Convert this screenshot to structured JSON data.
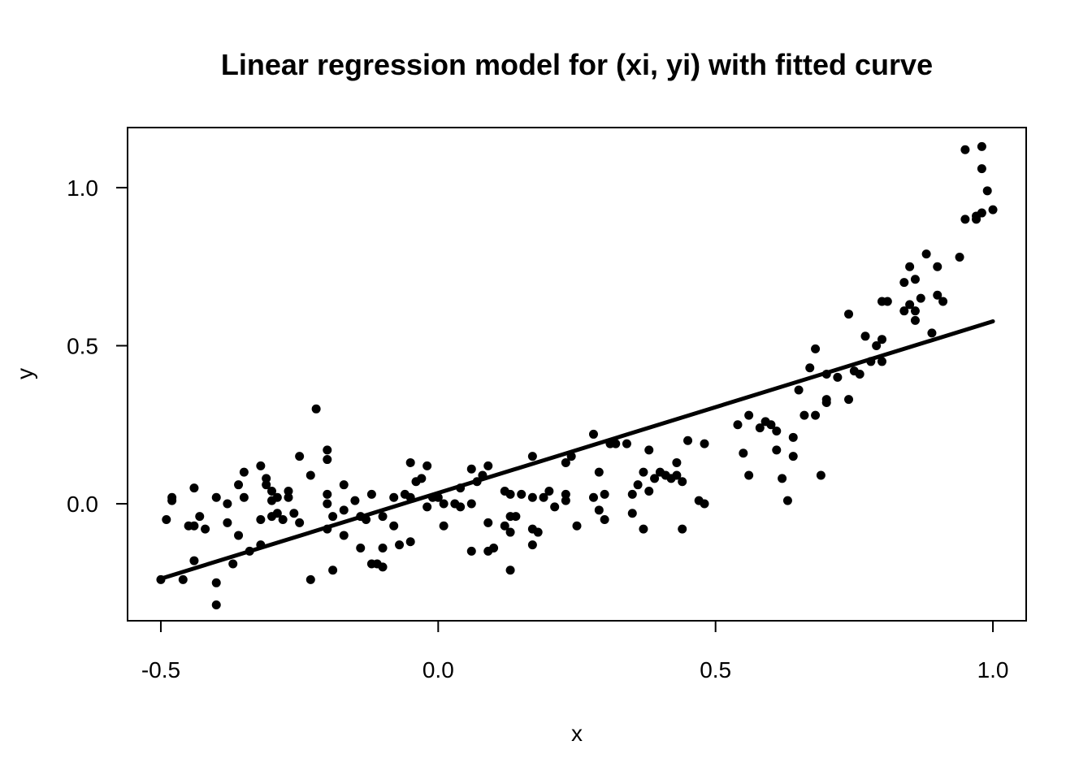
{
  "chart_data": {
    "type": "scatter",
    "title": "Linear regression model for (xi, yi) with fitted curve",
    "xlabel": "x",
    "ylabel": "y",
    "xlim": [
      -0.56,
      1.06
    ],
    "ylim": [
      -0.37,
      1.19
    ],
    "xticks": [
      -0.5,
      0.0,
      0.5,
      1.0
    ],
    "xtick_labels": [
      "-0.5",
      "0.0",
      "0.5",
      "1.0"
    ],
    "yticks": [
      0.0,
      0.5,
      1.0
    ],
    "ytick_labels": [
      "0.0",
      "0.5",
      "1.0"
    ],
    "grid": false,
    "legend": "none",
    "point_color": "#000000",
    "line_color": "#000000",
    "fitted_line": {
      "x": [
        -0.5,
        1.0
      ],
      "y": [
        -0.237,
        0.577
      ]
    },
    "points": [
      [
        -0.5,
        -0.24
      ],
      [
        -0.49,
        -0.05
      ],
      [
        -0.48,
        0.02
      ],
      [
        -0.48,
        0.01
      ],
      [
        -0.46,
        -0.24
      ],
      [
        -0.45,
        -0.07
      ],
      [
        -0.44,
        -0.07
      ],
      [
        -0.44,
        0.05
      ],
      [
        -0.44,
        -0.18
      ],
      [
        -0.43,
        -0.04
      ],
      [
        -0.42,
        -0.08
      ],
      [
        -0.4,
        -0.32
      ],
      [
        -0.4,
        -0.25
      ],
      [
        -0.4,
        0.02
      ],
      [
        -0.38,
        -0.06
      ],
      [
        -0.38,
        0.0
      ],
      [
        -0.37,
        -0.19
      ],
      [
        -0.36,
        0.06
      ],
      [
        -0.36,
        -0.1
      ],
      [
        -0.35,
        0.02
      ],
      [
        -0.35,
        0.1
      ],
      [
        -0.34,
        -0.15
      ],
      [
        -0.32,
        0.12
      ],
      [
        -0.32,
        -0.05
      ],
      [
        -0.32,
        -0.13
      ],
      [
        -0.31,
        0.08
      ],
      [
        -0.31,
        0.06
      ],
      [
        -0.3,
        0.04
      ],
      [
        -0.3,
        0.01
      ],
      [
        -0.3,
        -0.04
      ],
      [
        -0.29,
        -0.03
      ],
      [
        -0.29,
        0.02
      ],
      [
        -0.28,
        -0.05
      ],
      [
        -0.27,
        0.04
      ],
      [
        -0.27,
        0.02
      ],
      [
        -0.26,
        -0.03
      ],
      [
        -0.25,
        -0.06
      ],
      [
        -0.25,
        0.15
      ],
      [
        -0.23,
        0.09
      ],
      [
        -0.23,
        -0.24
      ],
      [
        -0.22,
        0.3
      ],
      [
        -0.2,
        0.17
      ],
      [
        -0.2,
        0.14
      ],
      [
        -0.2,
        0.0
      ],
      [
        -0.2,
        0.03
      ],
      [
        -0.2,
        -0.08
      ],
      [
        -0.19,
        -0.21
      ],
      [
        -0.19,
        -0.04
      ],
      [
        -0.17,
        -0.1
      ],
      [
        -0.17,
        0.06
      ],
      [
        -0.17,
        -0.02
      ],
      [
        -0.15,
        0.01
      ],
      [
        -0.14,
        -0.04
      ],
      [
        -0.14,
        -0.14
      ],
      [
        -0.13,
        -0.05
      ],
      [
        -0.12,
        0.03
      ],
      [
        -0.12,
        -0.19
      ],
      [
        -0.11,
        -0.19
      ],
      [
        -0.1,
        -0.14
      ],
      [
        -0.1,
        -0.2
      ],
      [
        -0.1,
        -0.04
      ],
      [
        -0.08,
        -0.07
      ],
      [
        -0.08,
        0.02
      ],
      [
        -0.07,
        -0.13
      ],
      [
        -0.06,
        0.03
      ],
      [
        -0.05,
        -0.12
      ],
      [
        -0.05,
        0.13
      ],
      [
        -0.05,
        0.02
      ],
      [
        -0.04,
        0.07
      ],
      [
        -0.03,
        0.08
      ],
      [
        -0.02,
        -0.01
      ],
      [
        -0.02,
        0.12
      ],
      [
        -0.01,
        0.02
      ],
      [
        0.0,
        0.02
      ],
      [
        0.01,
        -0.07
      ],
      [
        0.01,
        0.0
      ],
      [
        0.03,
        0.0
      ],
      [
        0.04,
        0.05
      ],
      [
        0.04,
        -0.01
      ],
      [
        0.06,
        0.0
      ],
      [
        0.06,
        0.11
      ],
      [
        0.06,
        -0.15
      ],
      [
        0.07,
        0.07
      ],
      [
        0.08,
        0.09
      ],
      [
        0.09,
        -0.15
      ],
      [
        0.09,
        0.12
      ],
      [
        0.09,
        -0.06
      ],
      [
        0.1,
        -0.14
      ],
      [
        0.12,
        0.04
      ],
      [
        0.12,
        -0.07
      ],
      [
        0.13,
        0.03
      ],
      [
        0.13,
        -0.04
      ],
      [
        0.13,
        -0.21
      ],
      [
        0.13,
        -0.09
      ],
      [
        0.14,
        -0.04
      ],
      [
        0.15,
        0.03
      ],
      [
        0.17,
        0.15
      ],
      [
        0.17,
        -0.13
      ],
      [
        0.17,
        -0.08
      ],
      [
        0.17,
        0.02
      ],
      [
        0.18,
        -0.09
      ],
      [
        0.19,
        0.02
      ],
      [
        0.2,
        0.04
      ],
      [
        0.21,
        -0.01
      ],
      [
        0.23,
        0.03
      ],
      [
        0.23,
        0.13
      ],
      [
        0.23,
        0.01
      ],
      [
        0.24,
        0.15
      ],
      [
        0.25,
        -0.07
      ],
      [
        0.28,
        0.22
      ],
      [
        0.28,
        0.02
      ],
      [
        0.29,
        0.1
      ],
      [
        0.29,
        -0.02
      ],
      [
        0.3,
        0.03
      ],
      [
        0.3,
        -0.05
      ],
      [
        0.31,
        0.19
      ],
      [
        0.32,
        0.19
      ],
      [
        0.34,
        0.19
      ],
      [
        0.35,
        0.03
      ],
      [
        0.35,
        -0.03
      ],
      [
        0.36,
        0.06
      ],
      [
        0.37,
        0.1
      ],
      [
        0.37,
        -0.08
      ],
      [
        0.38,
        0.04
      ],
      [
        0.38,
        0.17
      ],
      [
        0.39,
        0.08
      ],
      [
        0.4,
        0.1
      ],
      [
        0.41,
        0.09
      ],
      [
        0.42,
        0.08
      ],
      [
        0.43,
        0.13
      ],
      [
        0.43,
        0.09
      ],
      [
        0.44,
        0.07
      ],
      [
        0.44,
        -0.08
      ],
      [
        0.45,
        0.2
      ],
      [
        0.47,
        0.01
      ],
      [
        0.48,
        0.0
      ],
      [
        0.48,
        0.19
      ],
      [
        0.54,
        0.25
      ],
      [
        0.55,
        0.16
      ],
      [
        0.56,
        0.28
      ],
      [
        0.56,
        0.09
      ],
      [
        0.58,
        0.24
      ],
      [
        0.59,
        0.26
      ],
      [
        0.6,
        0.25
      ],
      [
        0.61,
        0.23
      ],
      [
        0.61,
        0.17
      ],
      [
        0.62,
        0.08
      ],
      [
        0.63,
        0.01
      ],
      [
        0.64,
        0.15
      ],
      [
        0.64,
        0.21
      ],
      [
        0.65,
        0.36
      ],
      [
        0.66,
        0.28
      ],
      [
        0.67,
        0.43
      ],
      [
        0.68,
        0.28
      ],
      [
        0.68,
        0.49
      ],
      [
        0.69,
        0.09
      ],
      [
        0.7,
        0.32
      ],
      [
        0.7,
        0.33
      ],
      [
        0.7,
        0.41
      ],
      [
        0.72,
        0.4
      ],
      [
        0.74,
        0.33
      ],
      [
        0.74,
        0.6
      ],
      [
        0.75,
        0.42
      ],
      [
        0.76,
        0.41
      ],
      [
        0.77,
        0.53
      ],
      [
        0.78,
        0.45
      ],
      [
        0.79,
        0.5
      ],
      [
        0.8,
        0.45
      ],
      [
        0.8,
        0.64
      ],
      [
        0.8,
        0.52
      ],
      [
        0.81,
        0.64
      ],
      [
        0.84,
        0.7
      ],
      [
        0.84,
        0.61
      ],
      [
        0.85,
        0.75
      ],
      [
        0.85,
        0.63
      ],
      [
        0.86,
        0.71
      ],
      [
        0.86,
        0.61
      ],
      [
        0.86,
        0.58
      ],
      [
        0.87,
        0.65
      ],
      [
        0.88,
        0.79
      ],
      [
        0.89,
        0.54
      ],
      [
        0.9,
        0.66
      ],
      [
        0.9,
        0.75
      ],
      [
        0.91,
        0.64
      ],
      [
        0.94,
        0.78
      ],
      [
        0.95,
        0.9
      ],
      [
        0.95,
        1.12
      ],
      [
        0.97,
        0.91
      ],
      [
        0.97,
        0.9
      ],
      [
        0.98,
        0.92
      ],
      [
        0.98,
        1.06
      ],
      [
        0.98,
        1.13
      ],
      [
        0.99,
        0.99
      ],
      [
        1.0,
        0.93
      ]
    ]
  }
}
